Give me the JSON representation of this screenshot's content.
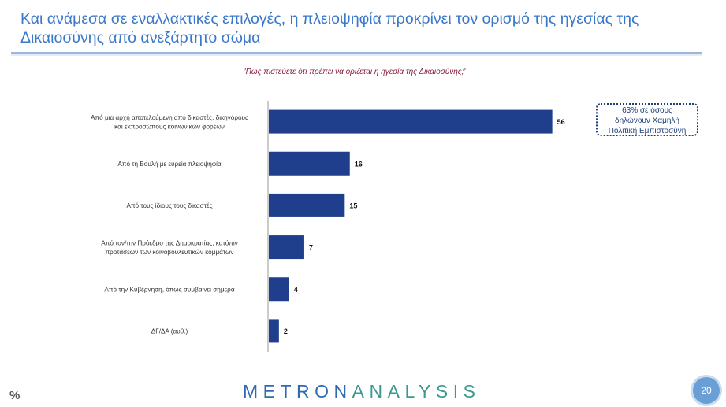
{
  "title": "Και ανάμεσα σε εναλλακτικές επιλογές, η πλειοψηφία προκρίνει τον ορισμό της ηγεσίας της Δικαιοσύνης από ανεξάρτητο σώμα",
  "subtitle": "'Πώς πιστεύετε ότι πρέπει να ορίζεται η ηγεσία της Δικαιοσύνης;'",
  "callout": {
    "line1": "63% σε όσους",
    "line2": "δηλώνουν Χαμηλή",
    "line3": "Πολιτική Εμπιστοσύνη"
  },
  "footer": {
    "unit": "%",
    "logo_left": "METRON",
    "logo_right": "ANALYSIS",
    "page_number": "20"
  },
  "colors": {
    "bar": "#1f3f8c",
    "title": "#3a78c9",
    "subtitle": "#8a1d3a",
    "axis": "#999999"
  },
  "chart_data": {
    "type": "bar",
    "orientation": "horizontal",
    "categories": [
      [
        "Από μια αρχή αποτελούμενη από δικαστές, δικηγόρους",
        "και εκπροσώπους κοινωνικών φορέων"
      ],
      [
        "Από τη Βουλή με ευρεία πλειοψηφία"
      ],
      [
        "Από τους ίδιους τους δικαστές"
      ],
      [
        "Από τον/την Πρόεδρο της Δημοκρατίας, κατόπιν",
        "προτάσεων των κοινοβουλευτικών κομμάτων"
      ],
      [
        "Από την Κυβέρνηση, όπως συμβαίνει σήμερα"
      ],
      [
        "ΔΓ/ΔΑ (αυθ.)"
      ]
    ],
    "values": [
      56,
      16,
      15,
      7,
      4,
      2
    ],
    "data_labels": [
      "56",
      "16",
      "15",
      "7",
      "4",
      "2"
    ],
    "xlim": [
      0,
      64
    ],
    "grid": false,
    "legend": "none"
  }
}
